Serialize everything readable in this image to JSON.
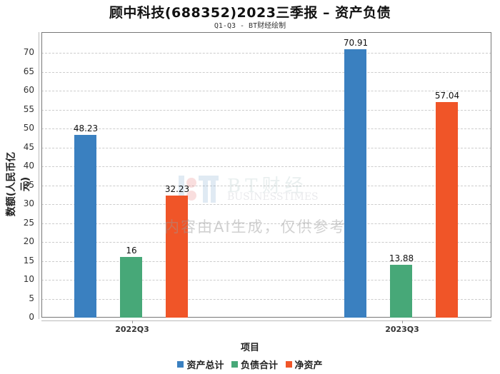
{
  "header": {
    "title": "顾中科技(688352)2023三季报 – 资产负债",
    "subtitle": "Q1-Q3 - BT财经绘制"
  },
  "watermark": {
    "brand": "BT财经",
    "brand_en": "BUSINESSTIMES",
    "notice": "内容由AI生成，仅供参考"
  },
  "axes": {
    "ylabel": "数额(人民币亿元)",
    "xlabel": "项目",
    "yticks": [
      "0",
      "5",
      "10",
      "15",
      "20",
      "25",
      "30",
      "35",
      "40",
      "45",
      "50",
      "55",
      "60",
      "65",
      "70"
    ],
    "xticks": [
      "2022Q3",
      "2023Q3"
    ]
  },
  "legend": [
    {
      "label": "资产总计",
      "color": "#3a80c0"
    },
    {
      "label": "负债合计",
      "color": "#47a878"
    },
    {
      "label": "净资产",
      "color": "#f05528"
    }
  ],
  "bar_labels": {
    "g0": [
      "48.23",
      "16",
      "32.23"
    ],
    "g1": [
      "70.91",
      "13.88",
      "57.04"
    ]
  },
  "chart_data": {
    "type": "bar",
    "title": "顾中科技(688352)2023三季报 – 资产负债",
    "subtitle": "Q1-Q3 - BT财经绘制",
    "categories": [
      "2022Q3",
      "2023Q3"
    ],
    "series": [
      {
        "name": "资产总计",
        "values": [
          48.23,
          70.91
        ],
        "color": "#3a80c0"
      },
      {
        "name": "负债合计",
        "values": [
          16,
          13.88
        ],
        "color": "#47a878"
      },
      {
        "name": "净资产",
        "values": [
          32.23,
          57.04
        ],
        "color": "#f05528"
      }
    ],
    "xlabel": "项目",
    "ylabel": "数额(人民币亿元)",
    "ylim": [
      0,
      75
    ],
    "yticks": [
      0,
      5,
      10,
      15,
      20,
      25,
      30,
      35,
      40,
      45,
      50,
      55,
      60,
      65,
      70
    ],
    "grid": true,
    "legend_position": "bottom"
  }
}
